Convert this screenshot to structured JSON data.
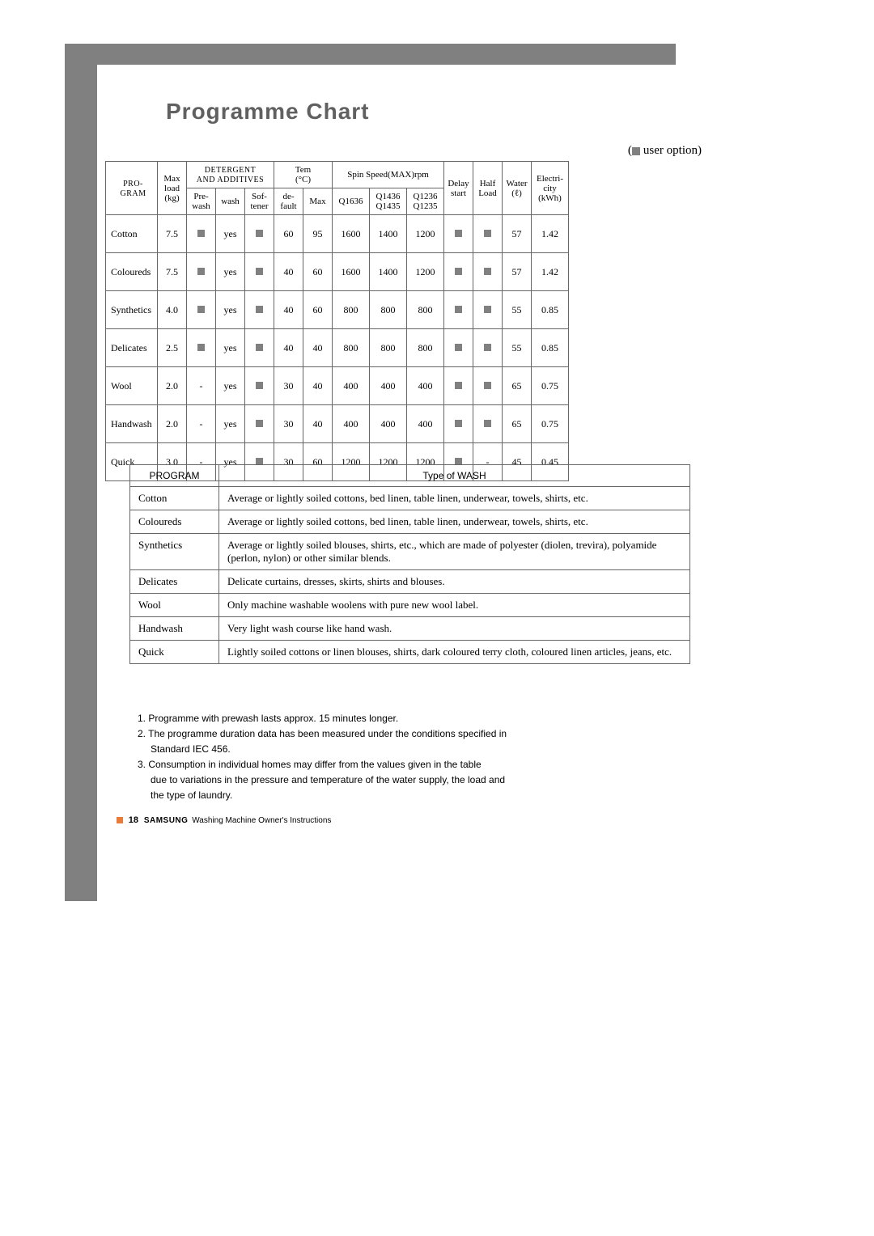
{
  "title": "Programme Chart",
  "user_option_label": "user option)",
  "user_option_prefix": "(",
  "main_table": {
    "header": {
      "program": "PRO-\nGRAM",
      "max_load": "Max\nload\n(kg)",
      "detergent_group": "DETERGENT\nAND ADDITIVES",
      "prewash": "Pre-\nwash",
      "wash": "wash",
      "softener": "Sof-\ntener",
      "temp_group": "Tem\n(°C)",
      "default": "de-\nfault",
      "max": "Max",
      "spin_group": "Spin Speed(MAX)rpm",
      "q1636": "Q1636",
      "q1436": "Q1436\nQ1435",
      "q1236": "Q1236\nQ1235",
      "delay": "Delay\nstart",
      "half": "Half\nLoad",
      "water": "Water\n(ℓ)",
      "elec": "Electri-\ncity\n(kWh)"
    },
    "rows": [
      {
        "program": "Cotton",
        "max": "7.5",
        "pre": "■",
        "wash": "yes",
        "soft": "■",
        "def": "60",
        "tmax": "95",
        "q1": "1600",
        "q2": "1400",
        "q3": "1200",
        "delay": "■",
        "half": "■",
        "water": "57",
        "elec": "1.42"
      },
      {
        "program": "Coloureds",
        "max": "7.5",
        "pre": "■",
        "wash": "yes",
        "soft": "■",
        "def": "40",
        "tmax": "60",
        "q1": "1600",
        "q2": "1400",
        "q3": "1200",
        "delay": "■",
        "half": "■",
        "water": "57",
        "elec": "1.42"
      },
      {
        "program": "Synthetics",
        "max": "4.0",
        "pre": "■",
        "wash": "yes",
        "soft": "■",
        "def": "40",
        "tmax": "60",
        "q1": "800",
        "q2": "800",
        "q3": "800",
        "delay": "■",
        "half": "■",
        "water": "55",
        "elec": "0.85"
      },
      {
        "program": "Delicates",
        "max": "2.5",
        "pre": "■",
        "wash": "yes",
        "soft": "■",
        "def": "40",
        "tmax": "40",
        "q1": "800",
        "q2": "800",
        "q3": "800",
        "delay": "■",
        "half": "■",
        "water": "55",
        "elec": "0.85"
      },
      {
        "program": "Wool",
        "max": "2.0",
        "pre": "-",
        "wash": "yes",
        "soft": "■",
        "def": "30",
        "tmax": "40",
        "q1": "400",
        "q2": "400",
        "q3": "400",
        "delay": "■",
        "half": "■",
        "water": "65",
        "elec": "0.75"
      },
      {
        "program": "Handwash",
        "max": "2.0",
        "pre": "-",
        "wash": "yes",
        "soft": "■",
        "def": "30",
        "tmax": "40",
        "q1": "400",
        "q2": "400",
        "q3": "400",
        "delay": "■",
        "half": "■",
        "water": "65",
        "elec": "0.75"
      },
      {
        "program": "Quick",
        "max": "3.0",
        "pre": "-",
        "wash": "yes",
        "soft": "■",
        "def": "30",
        "tmax": "60",
        "q1": "1200",
        "q2": "1200",
        "q3": "1200",
        "delay": "■",
        "half": "-",
        "water": "45",
        "elec": "0.45"
      }
    ]
  },
  "desc_table": {
    "head_program": "PROGRAM",
    "head_type": "Type of  WASH",
    "rows": [
      {
        "p": "Cotton",
        "d": "Average or lightly soiled cottons, bed linen, table linen, underwear, towels, shirts, etc."
      },
      {
        "p": "Coloureds",
        "d": "Average or lightly soiled cottons, bed linen, table linen, underwear, towels, shirts, etc."
      },
      {
        "p": "Synthetics",
        "d": "Average or lightly soiled blouses, shirts, etc., which are made of polyester (diolen, trevira), polyamide (perlon, nylon) or other similar blends."
      },
      {
        "p": "Delicates",
        "d": "Delicate curtains, dresses, skirts, shirts and blouses."
      },
      {
        "p": "Wool",
        "d": "Only machine washable woolens with pure new wool label."
      },
      {
        "p": "Handwash",
        "d": "Very light wash course like hand wash."
      },
      {
        "p": "Quick",
        "d": "Lightly soiled cottons or linen blouses, shirts, dark coloured terry cloth, coloured linen articles, jeans, etc."
      }
    ]
  },
  "notes": [
    "1. Programme with prewash lasts approx. 15 minutes longer.",
    "2. The programme duration data has been measured under the conditions specified in",
    "    Standard IEC 456.",
    "3. Consumption in individual homes may differ from the values given in the table",
    "    due to variations in the pressure and temperature of the water supply, the load and",
    "    the type of laundry."
  ],
  "footer": {
    "page": "18",
    "brand": "SAMSUNG",
    "text": "Washing Machine Owner's Instructions"
  },
  "colors": {
    "gray_bar": "#808080",
    "title": "#606060",
    "border": "#666666",
    "orange": "#e87b3a",
    "option_box": "#808080"
  }
}
